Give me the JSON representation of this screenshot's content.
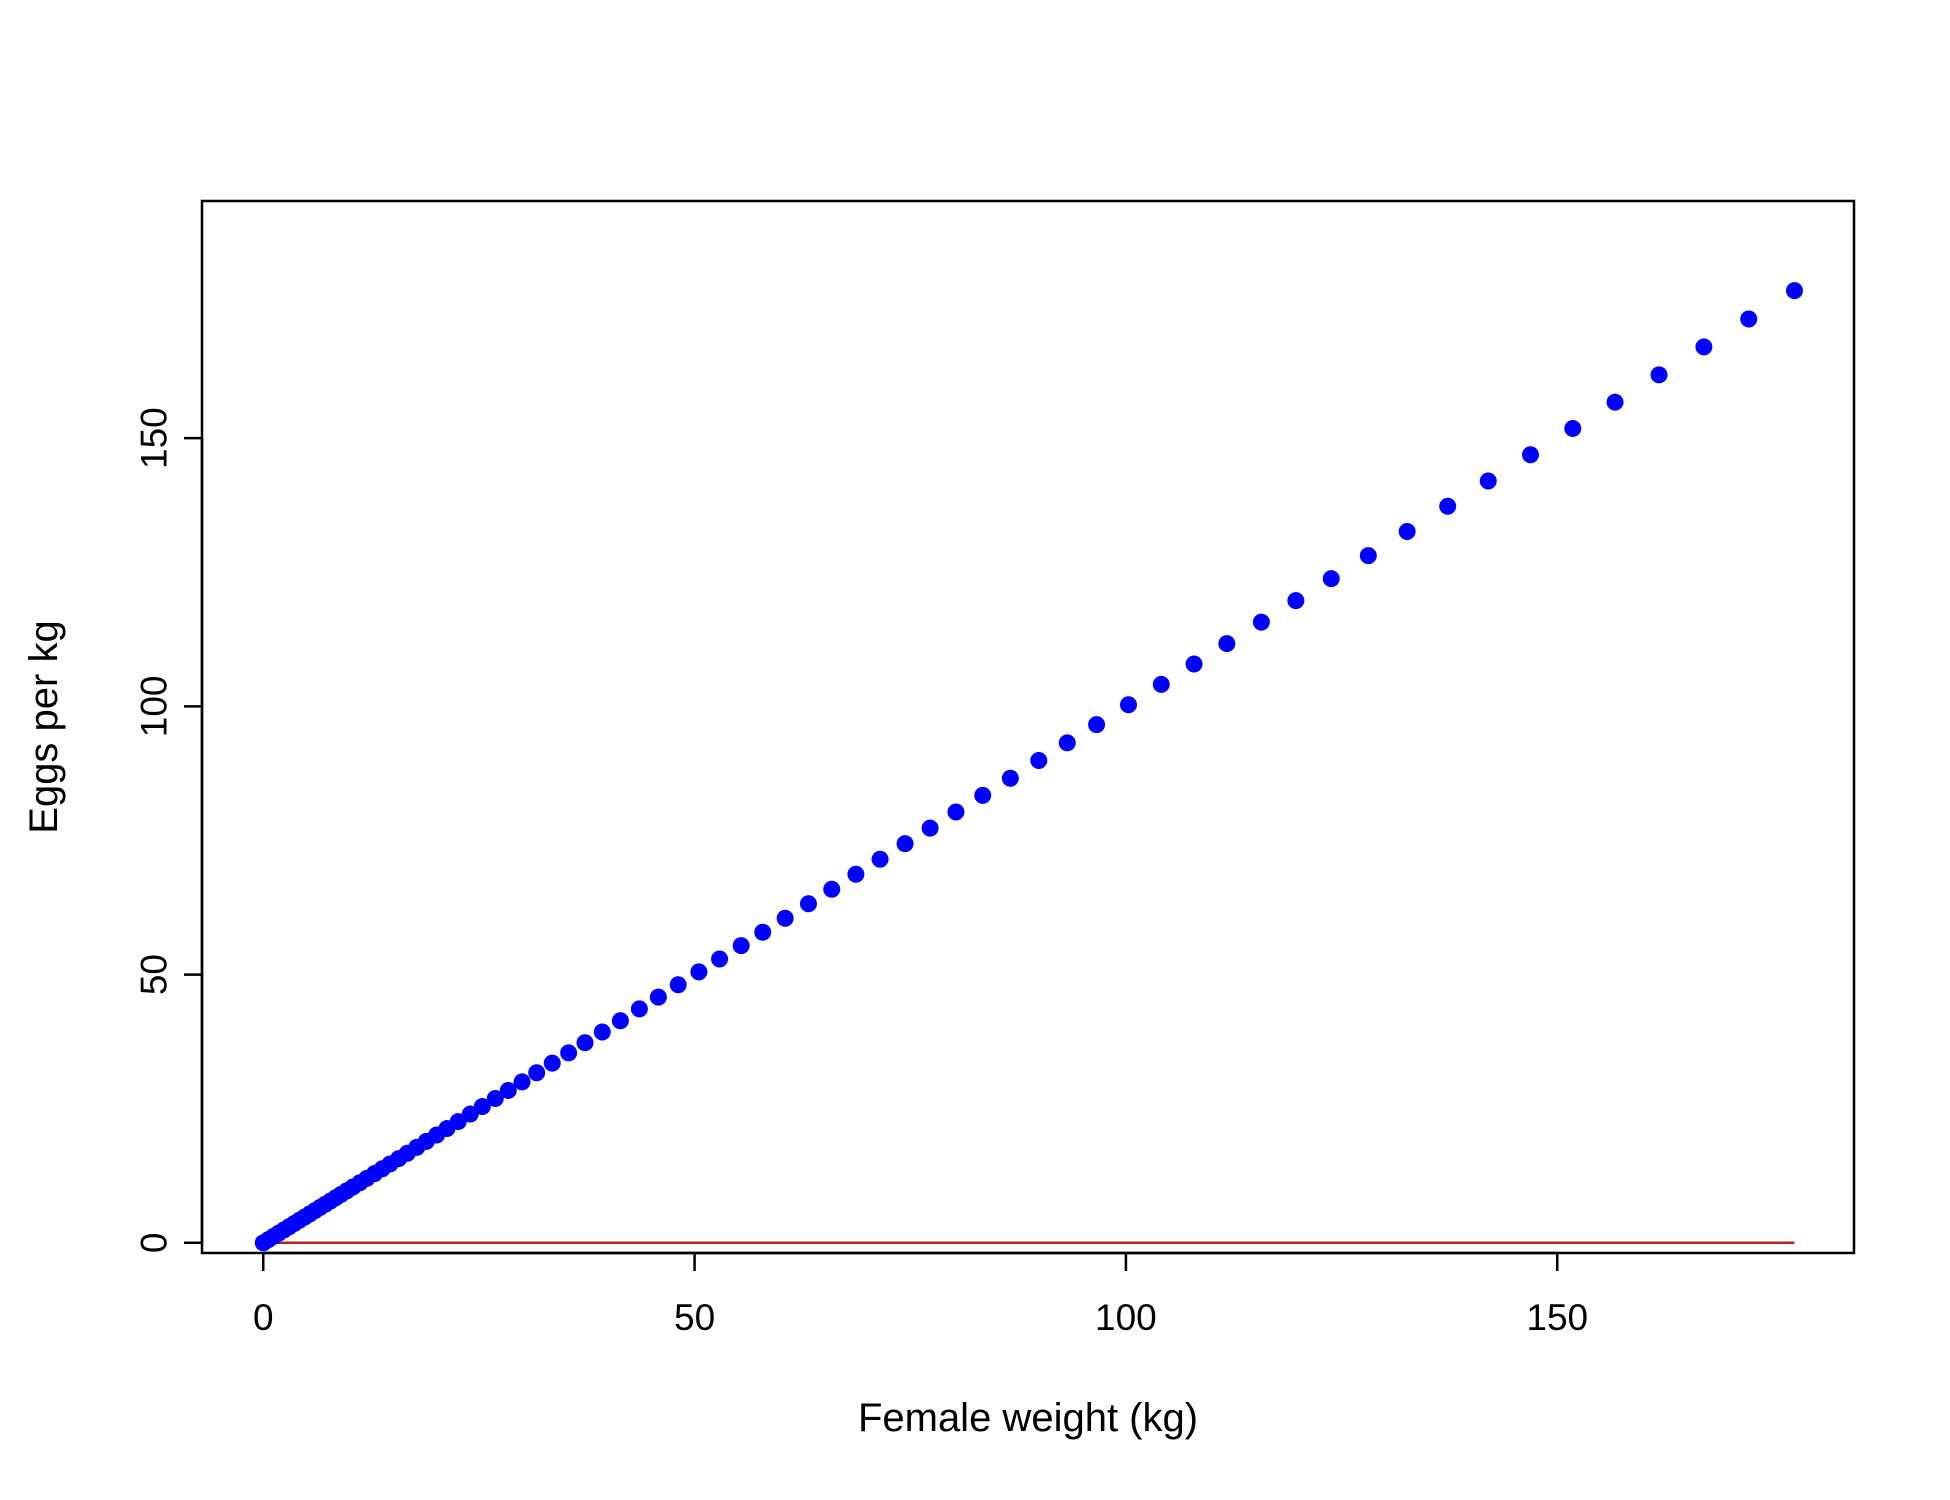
{
  "chart_data": {
    "type": "scatter",
    "title": "",
    "xlabel": "Female weight (kg)",
    "ylabel": "Eggs per kg",
    "xlim": [
      -7.1,
      184.4
    ],
    "ylim": [
      -1.9,
      194.2
    ],
    "x_ticks": [
      0,
      50,
      100,
      150
    ],
    "x_tick_labels": [
      "0",
      "50",
      "100",
      "150"
    ],
    "y_ticks": [
      0,
      50,
      100,
      150
    ],
    "y_tick_labels": [
      "0",
      "50",
      "100",
      "150"
    ],
    "grid": false,
    "legend": "none",
    "series": [
      {
        "color": "#0000ff",
        "marker": "filled-circle",
        "x": [
          0,
          0.6,
          1.2,
          1.8,
          2.4,
          3.0,
          3.6,
          4.2,
          4.8,
          5.4,
          6.0,
          6.6,
          7.2,
          7.8,
          8.4,
          9.0,
          9.7,
          10.4,
          11.2,
          12.0,
          12.9,
          13.8,
          14.7,
          15.7,
          16.7,
          17.8,
          18.9,
          20.1,
          21.3,
          22.6,
          24.0,
          25.4,
          26.9,
          28.4,
          30.0,
          31.7,
          33.5,
          35.4,
          37.3,
          39.3,
          41.4,
          43.6,
          45.8,
          48.1,
          50.5,
          52.9,
          55.4,
          57.9,
          60.5,
          63.2,
          65.9,
          68.7,
          71.5,
          74.4,
          77.3,
          80.3,
          83.4,
          86.6,
          89.9,
          93.2,
          96.6,
          100.3,
          104.1,
          107.9,
          111.7,
          115.7,
          119.7,
          123.8,
          128.1,
          132.6,
          137.3,
          142.0,
          146.9,
          151.8,
          156.7,
          161.8,
          167.0,
          172.2,
          177.5
        ],
        "y": [
          0,
          0.6,
          1.2,
          1.8,
          2.4,
          3.0,
          3.6,
          4.2,
          4.8,
          5.4,
          6.0,
          6.6,
          7.2,
          7.8,
          8.4,
          9.0,
          9.7,
          10.4,
          11.2,
          12.0,
          12.9,
          13.8,
          14.7,
          15.7,
          16.7,
          17.8,
          18.9,
          20.1,
          21.3,
          22.6,
          24.0,
          25.4,
          26.9,
          28.4,
          30.0,
          31.7,
          33.5,
          35.4,
          37.3,
          39.3,
          41.4,
          43.6,
          45.8,
          48.1,
          50.5,
          52.9,
          55.4,
          57.9,
          60.5,
          63.2,
          65.9,
          68.7,
          71.5,
          74.4,
          77.3,
          80.3,
          83.4,
          86.6,
          89.9,
          93.2,
          96.6,
          100.3,
          104.1,
          107.9,
          111.7,
          115.7,
          119.7,
          123.8,
          128.1,
          132.6,
          137.3,
          142.0,
          146.9,
          151.8,
          156.7,
          161.8,
          167.0,
          172.2,
          177.5
        ]
      }
    ],
    "reference_line": {
      "color": "#b22222",
      "x": [
        0,
        177.5
      ],
      "y": [
        0,
        0
      ]
    }
  }
}
